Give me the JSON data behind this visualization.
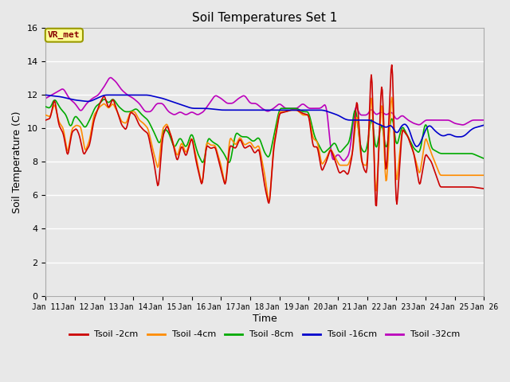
{
  "title": "Soil Temperatures Set 1",
  "xlabel": "Time",
  "ylabel": "Soil Temperature (C)",
  "ylim": [
    0,
    16
  ],
  "yticks": [
    0,
    2,
    4,
    6,
    8,
    10,
    12,
    14,
    16
  ],
  "x_labels": [
    "Jan 11",
    "Jan 12",
    "Jan 13",
    "Jan 14",
    "Jan 15",
    "Jan 16",
    "Jan 17",
    "Jan 18",
    "Jan 19",
    "Jan 20",
    "Jan 21",
    "Jan 22",
    "Jan 23",
    "Jan 24",
    "Jan 25",
    "Jan 26"
  ],
  "series_names": [
    "Tsoil -2cm",
    "Tsoil -4cm",
    "Tsoil -8cm",
    "Tsoil -16cm",
    "Tsoil -32cm"
  ],
  "series_colors": [
    "#cc0000",
    "#ff8c00",
    "#00aa00",
    "#0000cc",
    "#bb00bb"
  ],
  "line_width": 1.2,
  "background_color": "#e8e8e8",
  "plot_bg_color": "#e8e8e8",
  "annotation_text": "VR_met",
  "annotation_box_color": "#ffff99",
  "annotation_box_edge": "#999900",
  "grid_color": "#ffffff",
  "n_points": 600
}
